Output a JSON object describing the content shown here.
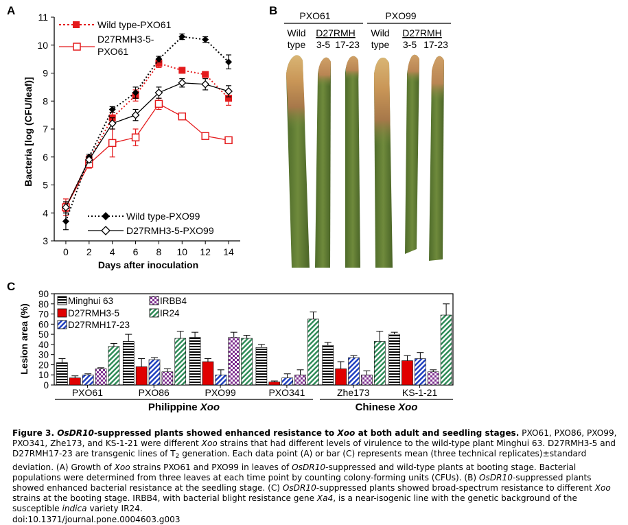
{
  "panel_a": {
    "letter": "A",
    "chart_data": {
      "type": "line",
      "xlabel": "Days after inoculation",
      "ylabel": "Bacteria [log (CFU/leaf)]",
      "xlim": [
        -1,
        15
      ],
      "ylim": [
        3,
        11
      ],
      "x_ticks": [
        0,
        2,
        4,
        6,
        8,
        10,
        12,
        14
      ],
      "y_ticks": [
        3,
        4,
        5,
        6,
        7,
        8,
        9,
        10,
        11
      ],
      "x": [
        0,
        2,
        4,
        6,
        8,
        10,
        12,
        14
      ],
      "series": [
        {
          "name": "Wild type-PXO61",
          "marker": "filled-square",
          "line": "dotted",
          "color": "#e41a1c",
          "values": [
            4.2,
            5.9,
            7.4,
            8.2,
            9.35,
            9.1,
            8.95,
            8.1
          ],
          "errors": [
            0.15,
            0.15,
            0.2,
            0.2,
            0.15,
            0.1,
            0.1,
            0.25
          ]
        },
        {
          "name": "D27RMH3-5-PXO61",
          "marker": "open-square",
          "line": "solid",
          "color": "#e41a1c",
          "values": [
            4.2,
            5.75,
            6.5,
            6.7,
            7.9,
            7.45,
            6.75,
            6.6
          ],
          "errors": [
            0.3,
            0.15,
            0.5,
            0.3,
            0.2,
            0.1,
            0.1,
            0.1
          ]
        },
        {
          "name": "Wild type-PXO99",
          "marker": "filled-diamond",
          "line": "dotted",
          "color": "#000000",
          "values": [
            3.7,
            6.0,
            7.7,
            8.3,
            9.5,
            10.3,
            10.2,
            9.4
          ],
          "errors": [
            0.3,
            0.1,
            0.1,
            0.2,
            0.1,
            0.1,
            0.1,
            0.25
          ]
        },
        {
          "name": "D27RMH3-5-PXO99",
          "marker": "open-diamond",
          "line": "solid",
          "color": "#000000",
          "values": [
            4.2,
            5.9,
            7.2,
            7.5,
            8.3,
            8.65,
            8.6,
            8.35
          ],
          "errors": [
            0.2,
            0.1,
            0.2,
            0.2,
            0.2,
            0.15,
            0.2,
            0.2
          ]
        }
      ]
    },
    "legend": {
      "wt61": "Wild type-PXO61",
      "d27_61_line1": "D27RMH3-5-",
      "d27_61_line2": "PXO61",
      "wt99": "Wild type-PXO99",
      "d27_99": "D27RMH3-5-PXO99"
    }
  },
  "panel_b": {
    "letter": "B",
    "groups": [
      "PXO61",
      "PXO99"
    ],
    "labels": {
      "wild": "Wild",
      "type": "type",
      "d27rmh": "D27RMH",
      "l35": "3-5",
      "l1723": "17-23"
    }
  },
  "panel_c": {
    "letter": "C",
    "chart_data": {
      "type": "bar",
      "ylabel": "Lesion area (%)",
      "ylim": [
        0,
        90
      ],
      "y_ticks": [
        0,
        10,
        20,
        30,
        40,
        50,
        60,
        70,
        80,
        90
      ],
      "categories": [
        "PXO61",
        "PXO86",
        "PXO99",
        "PXO341",
        "Zhe173",
        "KS-1-21"
      ],
      "group_labels": [
        {
          "label": "Philippine",
          "italic": "Xoo"
        },
        {
          "label": "Chinese",
          "italic": "Xoo"
        }
      ],
      "series": [
        {
          "name": "Minghui 63",
          "pattern": "black-horizontal-stripes",
          "values": [
            22,
            43,
            47,
            37,
            39,
            50
          ],
          "errors": [
            4,
            7,
            5,
            3,
            3,
            2
          ]
        },
        {
          "name": "D27RMH3-5",
          "pattern": "solid-red",
          "values": [
            7,
            18,
            23,
            3,
            16,
            24
          ],
          "errors": [
            2,
            8,
            3,
            1,
            7,
            5
          ]
        },
        {
          "name": "D27RMH17-23",
          "pattern": "blue-diagonal-stripes",
          "values": [
            10,
            25,
            10,
            7,
            27,
            26
          ],
          "errors": [
            1,
            2,
            5,
            4,
            2,
            6
          ]
        },
        {
          "name": "IRBB4",
          "pattern": "purple-checkerboard",
          "values": [
            16,
            13,
            47,
            10,
            10,
            13
          ],
          "errors": [
            1,
            3,
            5,
            5,
            4,
            2
          ]
        },
        {
          "name": "IR24",
          "pattern": "green-diagonal-stripes",
          "values": [
            38,
            46,
            46,
            65,
            43,
            69
          ],
          "errors": [
            3,
            7,
            3,
            7,
            10,
            11
          ]
        }
      ]
    }
  },
  "caption": {
    "fig_label": "Figure 3.",
    "title_gene": "OsDR10",
    "title_mid": "-suppressed plants showed enhanced resistance to ",
    "title_xoo": "Xoo",
    "title_end": " at both adult and seedling stages.",
    "s1a": " PXO61, PXO86, PXO99, PXO341, Zhe173, and KS-1-21 were different ",
    "s1_xoo": "Xoo",
    "s1b": " strains that had different levels of virulence to the wild-type plant Minghui 63. D27RMH3-5 and D27RMH17-23 are transgenic lines of T",
    "t2_sub": "2",
    "s1c": " generation. Each data point (A) or bar (C) represents mean (three technical replicates)±standard deviation. (A) Growth of ",
    "s2_xoo": "Xoo",
    "s2a": " strains PXO61 and PXO99 in leaves of ",
    "s2_gene": "OsDR10",
    "s2b": "-suppressed and wild-type plants at booting stage. Bacterial populations were determined from three leaves at each time point by counting colony-forming units (CFUs). (B) ",
    "s3_gene": "OsDR10",
    "s3a": "-suppressed plants showed enhanced bacterial resistance at the seedling stage. (C) ",
    "s4_gene": "OsDR10",
    "s4a": "-suppressed plants showed broad-spectrum resistance to different ",
    "s4_xoo": "Xoo",
    "s4b": " strains at the booting stage. IRBB4, with bacterial blight resistance gene ",
    "s4_xa4": "Xa4",
    "s4c": ", is a near-isogenic line with the genetic background of the susceptible ",
    "s4_indica": "indica",
    "s4d": " variety IR24.",
    "doi": "doi:10.1371/journal.pone.0004603.g003"
  }
}
